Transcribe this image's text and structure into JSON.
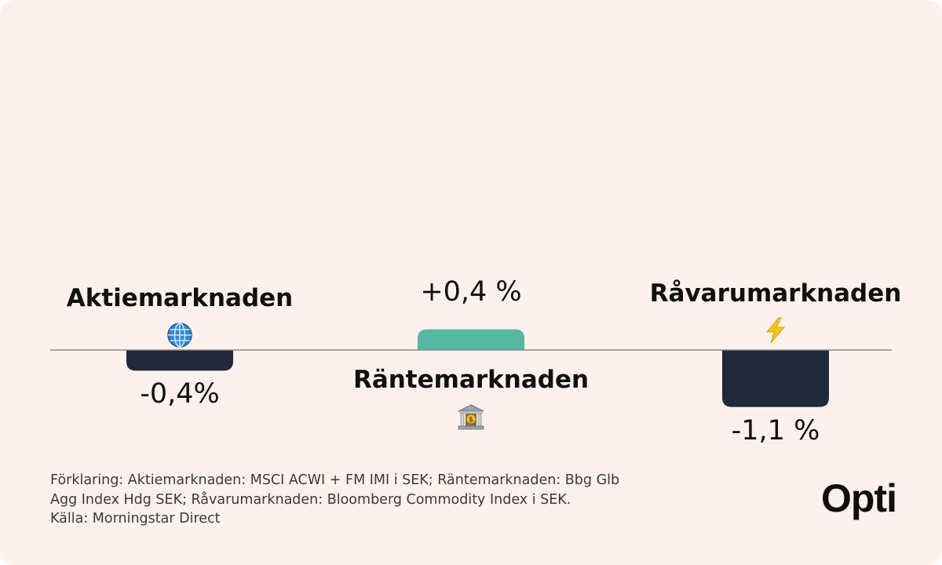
{
  "chart_data": {
    "type": "bar",
    "categories": [
      "Aktiemarknaden",
      "Räntemarknaden",
      "Råvarumarknaden"
    ],
    "values": [
      -0.4,
      0.4,
      -1.1
    ],
    "value_labels": [
      "-0,4%",
      "+0,4 %",
      "-1,1 %"
    ],
    "icons": [
      "globe-icon",
      "bank-icon",
      "lightning-icon"
    ],
    "colors": {
      "negative": "#1f293a",
      "positive": "#55b8a2",
      "axis": "#8a8a8a"
    },
    "xlabel": "",
    "ylabel": "",
    "grid": false
  },
  "footnote": {
    "lines": [
      "Förklaring: Aktiemarknaden: MSCI ACWI + FM IMI i SEK; Räntemarknaden: Bbg Glb",
      "Agg Index Hdg SEK; Råvarumarknaden: Bloomberg Commodity Index i SEK.",
      "Källa: Morningstar Direct"
    ]
  },
  "brand": {
    "logo_text": "Opti"
  }
}
